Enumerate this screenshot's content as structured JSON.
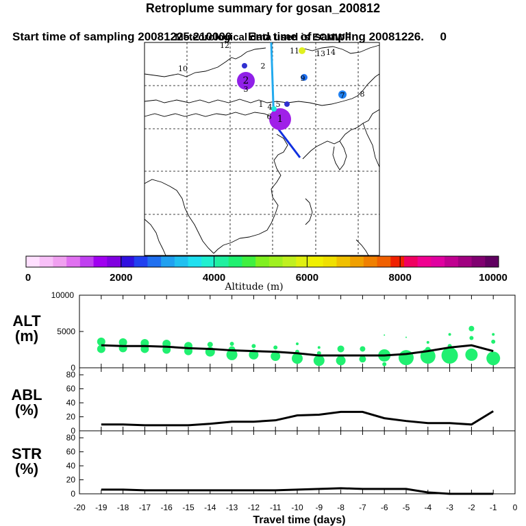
{
  "header": {
    "title": "Retroplume summary for gosan_200812",
    "sampling_line": "Start time of sampling 20081225.210000     End time of sampling 20081226.     0",
    "met_line": "Meteorological data used is ECMWF"
  },
  "colorbar": {
    "ticks": [
      "0",
      "2000",
      "4000",
      "6000",
      "8000",
      "10000"
    ],
    "label": "Altitude (m)",
    "colors": [
      "#ffe0ff",
      "#f8c0f8",
      "#f0a0f0",
      "#e070f0",
      "#c040f0",
      "#a000f0",
      "#8000e0",
      "#3010e0",
      "#2040f0",
      "#2070f0",
      "#20a0f0",
      "#20c0f0",
      "#20e0f0",
      "#20f0d0",
      "#20f0a0",
      "#20f070",
      "#40f040",
      "#80f020",
      "#a0f020",
      "#c0f020",
      "#e0f010",
      "#f0f000",
      "#f0e000",
      "#f0c000",
      "#f0a000",
      "#f08000",
      "#f06000",
      "#f02000",
      "#f00060",
      "#f00090",
      "#e000a0",
      "#c00090",
      "#a00080",
      "#800070",
      "#600060"
    ]
  },
  "map": {
    "markers": [
      "1",
      "2",
      "3",
      "4",
      "5",
      "6",
      "7",
      "8",
      "9",
      "10",
      "11",
      "12",
      "13",
      "14"
    ]
  },
  "panels": {
    "alt": {
      "label_top": "ALT",
      "label_bottom": "(m)",
      "yticks": [
        "10000",
        "5000",
        "0"
      ]
    },
    "abl": {
      "label_top": "ABL",
      "label_bottom": "(%)",
      "yticks": [
        "80",
        "60",
        "40",
        "20",
        "0"
      ]
    },
    "str": {
      "label_top": "STR",
      "label_bottom": "(%)",
      "yticks": [
        "80",
        "60",
        "40",
        "20",
        "0"
      ]
    }
  },
  "xaxis": {
    "label": "Travel time (days)",
    "ticks": [
      "-20",
      "-19",
      "-18",
      "-17",
      "-16",
      "-15",
      "-14",
      "-13",
      "-12",
      "-11",
      "-10",
      "-9",
      "-8",
      "-7",
      "-6",
      "-5",
      "-4",
      "-3",
      "-2",
      "-1",
      "0"
    ]
  },
  "chart_data": {
    "type": "line",
    "x": [
      -19,
      -18,
      -17,
      -16,
      -15,
      -14,
      -13,
      -12,
      -11,
      -10,
      -9,
      -8,
      -7,
      -6,
      -5,
      -4,
      -3,
      -2,
      -1
    ],
    "xlabel": "Travel time (days)",
    "xlim": [
      -20,
      0
    ],
    "series": [
      {
        "name": "ALT (m)",
        "ylim": [
          0,
          10000
        ],
        "values": [
          3100,
          3000,
          3000,
          2900,
          2700,
          2600,
          2400,
          2300,
          2200,
          2000,
          1700,
          1700,
          1700,
          1700,
          1900,
          2300,
          2800,
          3100,
          2300
        ]
      },
      {
        "name": "ABL (%)",
        "ylim": [
          0,
          90
        ],
        "values": [
          9,
          9,
          8,
          8,
          8,
          10,
          13,
          13,
          15,
          22,
          23,
          27,
          27,
          18,
          14,
          11,
          11,
          9,
          28
        ]
      },
      {
        "name": "STR (%)",
        "ylim": [
          0,
          90
        ],
        "values": [
          6,
          6,
          5,
          5,
          5,
          5,
          5,
          5,
          5,
          6,
          7,
          8,
          7,
          7,
          7,
          2,
          0,
          0,
          0
        ]
      }
    ],
    "alt_clusters": [
      {
        "x": -19,
        "alts": [
          3600,
          2600
        ],
        "sizes": [
          6,
          6
        ]
      },
      {
        "x": -18,
        "alts": [
          3500,
          2700
        ],
        "sizes": [
          6,
          6
        ]
      },
      {
        "x": -17,
        "alts": [
          3400,
          2600
        ],
        "sizes": [
          6,
          6
        ]
      },
      {
        "x": -16,
        "alts": [
          3300,
          2500
        ],
        "sizes": [
          6,
          6
        ]
      },
      {
        "x": -15,
        "alts": [
          3000,
          2300
        ],
        "sizes": [
          6,
          6
        ]
      },
      {
        "x": -14,
        "alts": [
          3200,
          2200
        ],
        "sizes": [
          4,
          7
        ]
      },
      {
        "x": -13,
        "alts": [
          3300,
          2500,
          1800
        ],
        "sizes": [
          3,
          5,
          8
        ]
      },
      {
        "x": -12,
        "alts": [
          3000,
          2200,
          1800
        ],
        "sizes": [
          3,
          4,
          7
        ]
      },
      {
        "x": -11,
        "alts": [
          2800,
          2000,
          1600
        ],
        "sizes": [
          3,
          4,
          7
        ]
      },
      {
        "x": -10,
        "alts": [
          3300,
          2200,
          1300
        ],
        "sizes": [
          2,
          3,
          8
        ]
      },
      {
        "x": -9,
        "alts": [
          2800,
          2000,
          1000
        ],
        "sizes": [
          2,
          3,
          8
        ]
      },
      {
        "x": -8,
        "alts": [
          2600,
          1000
        ],
        "sizes": [
          5,
          7
        ]
      },
      {
        "x": -7,
        "alts": [
          2600,
          1200
        ],
        "sizes": [
          4,
          5
        ]
      },
      {
        "x": -6,
        "alts": [
          4500,
          1700,
          500
        ],
        "sizes": [
          1,
          9,
          3
        ]
      },
      {
        "x": -5,
        "alts": [
          4200,
          1400
        ],
        "sizes": [
          1,
          11
        ]
      },
      {
        "x": -4,
        "alts": [
          3500,
          2500,
          1600
        ],
        "sizes": [
          2,
          4,
          11
        ]
      },
      {
        "x": -3,
        "alts": [
          4600,
          3000,
          1700
        ],
        "sizes": [
          2,
          3,
          12
        ]
      },
      {
        "x": -2,
        "alts": [
          5400,
          4100,
          1800
        ],
        "sizes": [
          4,
          3,
          9
        ]
      },
      {
        "x": -1,
        "alts": [
          4600,
          3600,
          1300
        ],
        "sizes": [
          2,
          3,
          10
        ]
      }
    ]
  }
}
